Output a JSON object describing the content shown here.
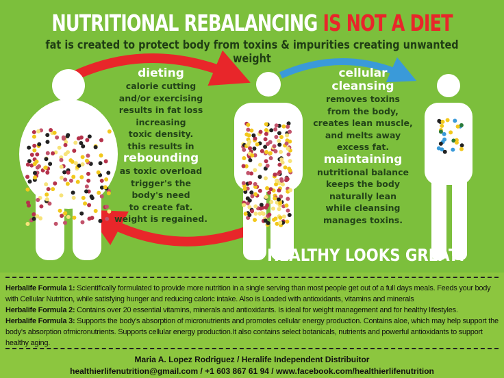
{
  "header": {
    "title_white": "NUTRITIONAL REBALANCING",
    "title_red": "IS NOT A DIET",
    "subtitle": "fat is created to protect body from toxins & impurities creating unwanted weight"
  },
  "left_text": {
    "heading1": "dieting",
    "lines1": [
      "calorie cutting",
      "and/or exercising",
      "results in fat loss",
      "increasing",
      "toxic density.",
      "this results in"
    ],
    "heading2": "rebounding",
    "lines2": [
      "as toxic overload",
      "trigger's the",
      "body's need",
      "to create fat.",
      "weight is regained."
    ]
  },
  "right_text": {
    "heading1a": "cellular",
    "heading1b": "cleansing",
    "lines1": [
      "removes toxins",
      "from the body,",
      "creates lean muscle,",
      "and melts away",
      "excess fat."
    ],
    "heading2": "maintaining",
    "lines2": [
      "nutritional balance",
      "keeps the body",
      "naturally lean",
      "while cleansing",
      "manages toxins."
    ]
  },
  "slogan": "HEALTHY LOOKS GREAT!",
  "colors": {
    "background": "#7cbf3c",
    "red_arrow": "#e8262a",
    "blue_arrow": "#3a9ad9",
    "title_red": "#e8262a"
  },
  "formulas": [
    {
      "label": "Herbalife Formula 1:",
      "text": " Scientifically formulated to provide more nutrition in a single serving than most people get out of a full days meals. Feeds your body with Cellular Nutrition, while satisfying hunger and reducing caloric intake. Also is Loaded with antioxidants, vitamins and minerals"
    },
    {
      "label": "Herbalife Formula 2:",
      "text": " Contains over 20 essential vitamins, minerals and antioxidants. Is  ideal for weight management and for healthy lifestyles."
    },
    {
      "label": "Herbalife Formula 3:",
      "text": " Supports the body's absorption of micronutrients and promotes cellular energy production. Contains aloe, which may help support the body's absorption ofmicronutrients.  Supports cellular energy production.It also contains select botanicals, nutrients and powerful antioxidants to support  healthy aging."
    }
  ],
  "footer": {
    "line1": "Maria A. Lopez Rodriguez / Heralife Independent Distribuitor",
    "line2": "healthierlifenutrition@gmail.com / +1 603 867 61 94 / www.facebook.com/healthierlifenutrition"
  }
}
